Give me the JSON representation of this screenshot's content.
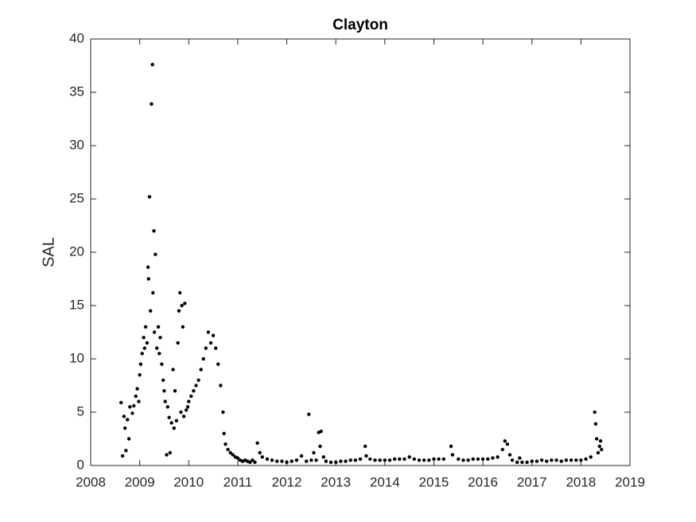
{
  "chart_data": {
    "type": "scatter",
    "title": "Clayton",
    "y_label": "SAL",
    "color": "#000000",
    "x": [
      2008.62,
      2008.65,
      2008.68,
      2008.7,
      2008.72,
      2008.75,
      2008.78,
      2008.8,
      2008.85,
      2008.88,
      2008.92,
      2008.95,
      2008.98,
      2009.0,
      2009.02,
      2009.05,
      2009.08,
      2009.1,
      2009.12,
      2009.15,
      2009.17,
      2009.18,
      2009.2,
      2009.22,
      2009.24,
      2009.26,
      2009.27,
      2009.29,
      2009.3,
      2009.32,
      2009.35,
      2009.38,
      2009.4,
      2009.42,
      2009.45,
      2009.48,
      2009.5,
      2009.52,
      2009.55,
      2009.57,
      2009.6,
      2009.62,
      2009.65,
      2009.68,
      2009.7,
      2009.72,
      2009.75,
      2009.78,
      2009.8,
      2009.82,
      2009.84,
      2009.86,
      2009.88,
      2009.9,
      2009.92,
      2009.95,
      2009.98,
      2010.0,
      2010.05,
      2010.1,
      2010.15,
      2010.2,
      2010.25,
      2010.3,
      2010.35,
      2010.4,
      2010.45,
      2010.5,
      2010.55,
      2010.6,
      2010.65,
      2010.7,
      2010.72,
      2010.75,
      2010.8,
      2010.85,
      2010.9,
      2010.95,
      2011.0,
      2011.05,
      2011.1,
      2011.15,
      2011.2,
      2011.25,
      2011.3,
      2011.35,
      2011.4,
      2011.45,
      2011.5,
      2011.6,
      2011.7,
      2011.8,
      2011.9,
      2012.0,
      2012.1,
      2012.2,
      2012.3,
      2012.4,
      2012.45,
      2012.5,
      2012.55,
      2012.6,
      2012.65,
      2012.68,
      2012.7,
      2012.75,
      2012.8,
      2012.9,
      2013.0,
      2013.1,
      2013.2,
      2013.3,
      2013.4,
      2013.5,
      2013.6,
      2013.62,
      2013.7,
      2013.8,
      2013.9,
      2014.0,
      2014.1,
      2014.2,
      2014.3,
      2014.4,
      2014.5,
      2014.6,
      2014.7,
      2014.8,
      2014.9,
      2015.0,
      2015.1,
      2015.2,
      2015.35,
      2015.38,
      2015.5,
      2015.6,
      2015.7,
      2015.8,
      2015.9,
      2016.0,
      2016.1,
      2016.2,
      2016.3,
      2016.4,
      2016.45,
      2016.5,
      2016.55,
      2016.6,
      2016.7,
      2016.75,
      2016.8,
      2016.9,
      2017.0,
      2017.1,
      2017.2,
      2017.3,
      2017.4,
      2017.5,
      2017.6,
      2017.7,
      2017.8,
      2017.9,
      2018.0,
      2018.1,
      2018.2,
      2018.28,
      2018.3,
      2018.32,
      2018.35,
      2018.38,
      2018.4,
      2018.42
    ],
    "values": [
      5.9,
      0.9,
      4.6,
      3.5,
      1.4,
      4.3,
      2.5,
      5.5,
      4.9,
      5.6,
      6.5,
      7.2,
      6.0,
      8.5,
      9.5,
      10.5,
      12.0,
      11.0,
      13.0,
      11.5,
      18.6,
      17.5,
      25.2,
      14.5,
      33.9,
      37.6,
      16.2,
      22.0,
      12.5,
      19.8,
      11.0,
      13.0,
      10.5,
      12.0,
      9.5,
      8.0,
      7.0,
      6.0,
      1.0,
      5.5,
      4.5,
      1.2,
      4.0,
      9.0,
      3.5,
      7.0,
      4.2,
      11.5,
      14.5,
      16.2,
      5.0,
      15.0,
      13.0,
      4.6,
      15.2,
      5.2,
      5.5,
      6.0,
      6.5,
      7.0,
      7.5,
      8.0,
      9.0,
      10.0,
      11.0,
      12.5,
      11.5,
      12.2,
      11.0,
      9.5,
      7.5,
      5.0,
      3.0,
      2.0,
      1.5,
      1.2,
      1.0,
      0.8,
      0.7,
      0.5,
      0.4,
      0.5,
      0.4,
      0.3,
      0.5,
      0.3,
      2.1,
      1.2,
      0.8,
      0.6,
      0.5,
      0.4,
      0.4,
      0.3,
      0.4,
      0.5,
      0.9,
      0.4,
      4.8,
      0.5,
      1.2,
      0.5,
      3.1,
      1.8,
      3.2,
      0.8,
      0.4,
      0.3,
      0.3,
      0.4,
      0.4,
      0.5,
      0.5,
      0.6,
      1.8,
      0.9,
      0.6,
      0.5,
      0.5,
      0.5,
      0.5,
      0.6,
      0.6,
      0.6,
      0.8,
      0.6,
      0.5,
      0.5,
      0.5,
      0.6,
      0.6,
      0.6,
      1.8,
      1.0,
      0.6,
      0.5,
      0.5,
      0.6,
      0.6,
      0.6,
      0.6,
      0.7,
      0.8,
      1.5,
      2.3,
      2.0,
      1.0,
      0.5,
      0.3,
      0.7,
      0.3,
      0.3,
      0.4,
      0.4,
      0.5,
      0.4,
      0.5,
      0.5,
      0.4,
      0.5,
      0.5,
      0.5,
      0.5,
      0.6,
      0.8,
      5.0,
      3.9,
      2.5,
      1.2,
      1.8,
      2.3,
      1.5
    ],
    "xlim": [
      2008,
      2019
    ],
    "xticks": [
      2008,
      2009,
      2010,
      2011,
      2012,
      2013,
      2014,
      2015,
      2016,
      2017,
      2018,
      2019
    ],
    "ylim": [
      0,
      40
    ],
    "yticks": [
      0,
      5,
      10,
      15,
      20,
      25,
      30,
      35,
      40
    ]
  }
}
